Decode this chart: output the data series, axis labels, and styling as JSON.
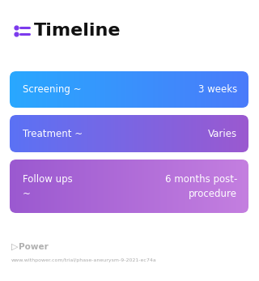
{
  "title": "Timeline",
  "title_fontsize": 16,
  "title_fontweight": "bold",
  "title_color": "#111111",
  "icon_color": "#7C3AED",
  "background_color": "#ffffff",
  "cards": [
    {
      "label": "Screening ~",
      "value": "3 weeks",
      "color_left": "#29A8FF",
      "color_right": "#4A7BFA",
      "text_color": "#ffffff",
      "label_fontsize": 8.5,
      "value_fontsize": 8.5,
      "multiline_label": false,
      "multiline_value": false
    },
    {
      "label": "Treatment ~",
      "value": "Varies",
      "color_left": "#5B72F5",
      "color_right": "#9B59D0",
      "text_color": "#ffffff",
      "label_fontsize": 8.5,
      "value_fontsize": 8.5,
      "multiline_label": false,
      "multiline_value": false
    },
    {
      "label": "Follow ups\n~",
      "value": "6 months post-\nprocedure",
      "color_left": "#9B59D0",
      "color_right": "#C47FE0",
      "text_color": "#ffffff",
      "label_fontsize": 8.5,
      "value_fontsize": 8.5,
      "multiline_label": true,
      "multiline_value": true
    }
  ],
  "footer_logo_text": "Power",
  "footer_logo_color": "#b0b0b0",
  "footer_url": "www.withpower.com/trial/phase-aneurysm-9-2021-ec74a",
  "footer_fontsize": 4.5,
  "footer_logo_fontsize": 7.5
}
